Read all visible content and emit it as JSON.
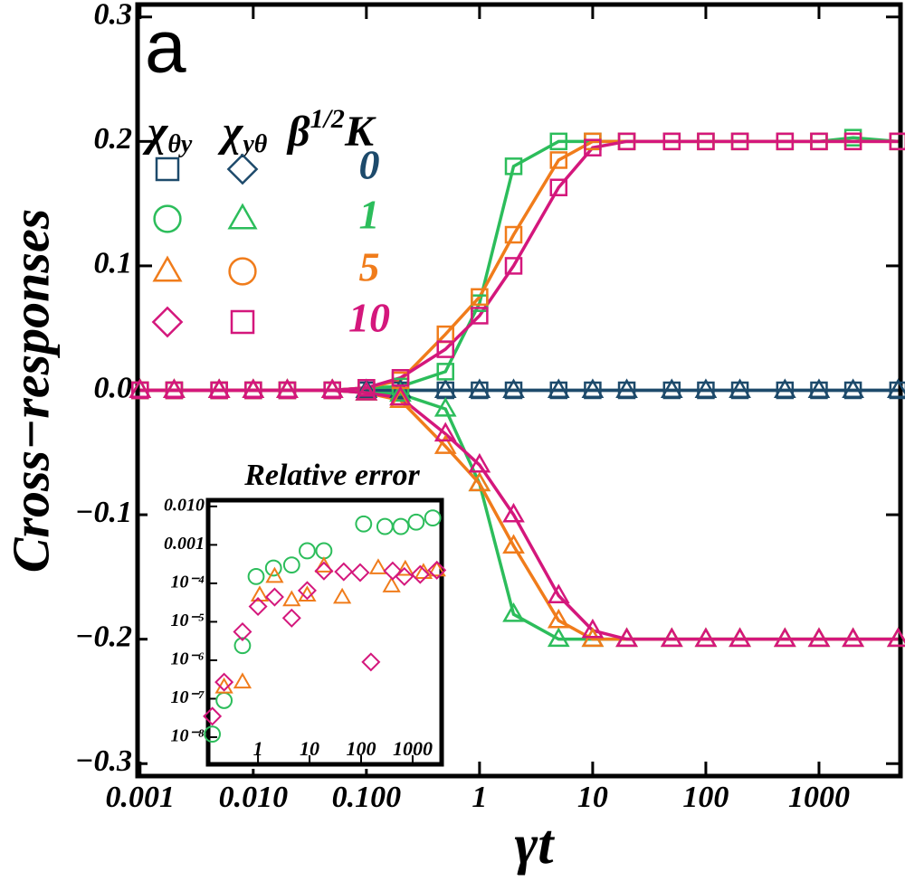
{
  "chart_data": [
    {
      "type": "line",
      "panel_label": "a",
      "ylabel": "Cross−responses",
      "xlabel": "γt",
      "xscale": "log",
      "xlim": [
        0.00095,
        5250
      ],
      "ylim": [
        -0.31,
        0.31
      ],
      "xticks": [
        0.001,
        {
          "value": 0.01,
          "label": "0.010"
        },
        {
          "value": 0.1,
          "label": "0.100"
        },
        1,
        10,
        100,
        1000
      ],
      "yticks": [
        {
          "value": -0.3,
          "label": "−0.3"
        },
        {
          "value": -0.2,
          "label": "−0.2"
        },
        {
          "value": -0.1,
          "label": "−0.1"
        },
        {
          "value": 0,
          "label": "0.0"
        },
        0.1,
        0.2,
        0.3
      ],
      "x": [
        0.001,
        0.002,
        0.005,
        0.01,
        0.02,
        0.05,
        0.1,
        0.2,
        0.5,
        1,
        2,
        5,
        10,
        20,
        50,
        100,
        200,
        500,
        1000,
        2000,
        5000
      ],
      "series": [
        {
          "color": "#1d4a6b",
          "marker": "square",
          "values": [
            0,
            0,
            0,
            0,
            0,
            0,
            0,
            0,
            0,
            0,
            0,
            0,
            0,
            0,
            0,
            0,
            0,
            0,
            0,
            0,
            0
          ]
        },
        {
          "color": "#1d4a6b",
          "marker": "triangle",
          "values": [
            0,
            0,
            0,
            0,
            0,
            0,
            0,
            0,
            0,
            0,
            0,
            0,
            0,
            0,
            0,
            0,
            0,
            0,
            0,
            0,
            0
          ]
        },
        {
          "color": "#2cbd5b",
          "marker": "square",
          "values": [
            0,
            0,
            0,
            0,
            0,
            0,
            0.002,
            0.003,
            0.015,
            0.07,
            0.18,
            0.2,
            0.2,
            0.2,
            0.2,
            0.2,
            0.2,
            0.2,
            0.2,
            0.203,
            0.2
          ]
        },
        {
          "color": "#2cbd5b",
          "marker": "triangle",
          "values": [
            0,
            0,
            0,
            0,
            0,
            0,
            -0.002,
            -0.003,
            -0.015,
            -0.075,
            -0.18,
            -0.2,
            -0.2,
            -0.2,
            -0.2,
            -0.2,
            -0.2,
            -0.2,
            -0.2,
            -0.2,
            -0.2
          ]
        },
        {
          "color": "#f07c1b",
          "marker": "square",
          "values": [
            0,
            0,
            0,
            0,
            0,
            0,
            0.002,
            0.008,
            0.045,
            0.075,
            0.125,
            0.185,
            0.2,
            0.2,
            0.2,
            0.2,
            0.2,
            0.2,
            0.2,
            0.2,
            0.2
          ]
        },
        {
          "color": "#f07c1b",
          "marker": "triangle",
          "values": [
            0,
            0,
            0,
            0,
            0,
            0,
            -0.002,
            -0.008,
            -0.045,
            -0.075,
            -0.125,
            -0.185,
            -0.2,
            -0.2,
            -0.2,
            -0.2,
            -0.2,
            -0.2,
            -0.2,
            -0.2,
            -0.2
          ]
        },
        {
          "color": "#d4177c",
          "marker": "square",
          "values": [
            0,
            0,
            0,
            0,
            0,
            0,
            0.002,
            0.01,
            0.033,
            0.06,
            0.1,
            0.163,
            0.195,
            0.2,
            0.2,
            0.2,
            0.2,
            0.2,
            0.2,
            0.2,
            0.2
          ]
        },
        {
          "color": "#d4177c",
          "marker": "triangle",
          "values": [
            0,
            0,
            0,
            0,
            0,
            0,
            -0.002,
            -0.006,
            -0.035,
            -0.06,
            -0.1,
            -0.165,
            -0.193,
            -0.2,
            -0.2,
            -0.2,
            -0.2,
            -0.2,
            -0.2,
            -0.2,
            -0.2
          ]
        }
      ],
      "legend": {
        "columns": [
          {
            "symbol": "χ",
            "sub": "θy"
          },
          {
            "symbol": "χ",
            "sub": "yθ"
          },
          {
            "symbol": "β",
            "sup": "1/2",
            "after": "K"
          }
        ],
        "rows": [
          {
            "label": "0",
            "color": "#1d4a6b",
            "markers": [
              "square",
              "diamond"
            ]
          },
          {
            "label": "1",
            "color": "#2cbd5b",
            "markers": [
              "circle",
              "triangle"
            ]
          },
          {
            "label": "5",
            "color": "#f07c1b",
            "markers": [
              "triangle",
              "circle"
            ]
          },
          {
            "label": "10",
            "color": "#d4177c",
            "markers": [
              "diamond",
              "square"
            ]
          }
        ]
      }
    },
    {
      "type": "scatter",
      "title": "Relative error",
      "xscale": "log",
      "yscale": "log",
      "xlim": [
        0.117,
        3650
      ],
      "ylim": [
        1e-08,
        0.013
      ],
      "xticks": [
        1,
        10,
        100,
        1000
      ],
      "yticks": [
        {
          "value": 1e-08,
          "label": "10⁻⁸"
        },
        {
          "value": 1e-07,
          "label": "10⁻⁷"
        },
        {
          "value": 1e-06,
          "label": "10⁻⁶"
        },
        {
          "value": 1e-05,
          "label": "10⁻⁵"
        },
        {
          "value": 0.0001,
          "label": "10⁻⁴"
        },
        0.001,
        {
          "value": 0.01,
          "label": "0.010"
        }
      ],
      "series": [
        {
          "color": "#2cbd5b",
          "marker": "circle",
          "x": [
            0.13,
            0.22,
            0.5,
            0.92,
            2,
            4.5,
            9,
            19,
            112,
            290,
            590,
            1170,
            2450
          ],
          "values": [
            1.2e-08,
            9e-08,
            2.4e-06,
            0.00015,
            0.00025,
            0.0003,
            0.0007,
            0.0007,
            0.0035,
            0.003,
            0.003,
            0.0039,
            0.005
          ]
        },
        {
          "color": "#f07c1b",
          "marker": "triangle",
          "x": [
            0.22,
            0.5,
            1.08,
            2.1,
            4.5,
            9,
            19,
            43,
            215,
            390,
            720,
            1620,
            2950
          ],
          "values": [
            2e-07,
            2.7e-07,
            4.9e-05,
            0.00015,
            3.7e-05,
            4.9e-05,
            0.00028,
            4.3e-05,
            0.00025,
            8.5e-05,
            0.00023,
            0.00019,
            0.00022
          ]
        },
        {
          "color": "#d4177c",
          "marker": "diamond",
          "x": [
            0.13,
            0.22,
            0.5,
            1,
            2.1,
            4.5,
            9,
            19,
            46,
            96,
            155,
            410,
            690,
            1400,
            2950
          ],
          "values": [
            3.5e-08,
            2.7e-07,
            5.5e-06,
            2.5e-05,
            4.4e-05,
            1.25e-05,
            6.5e-05,
            0.00021,
            0.0002,
            0.00019,
            9e-07,
            0.00021,
            0.00015,
            0.00017,
            0.00022
          ]
        }
      ]
    }
  ]
}
